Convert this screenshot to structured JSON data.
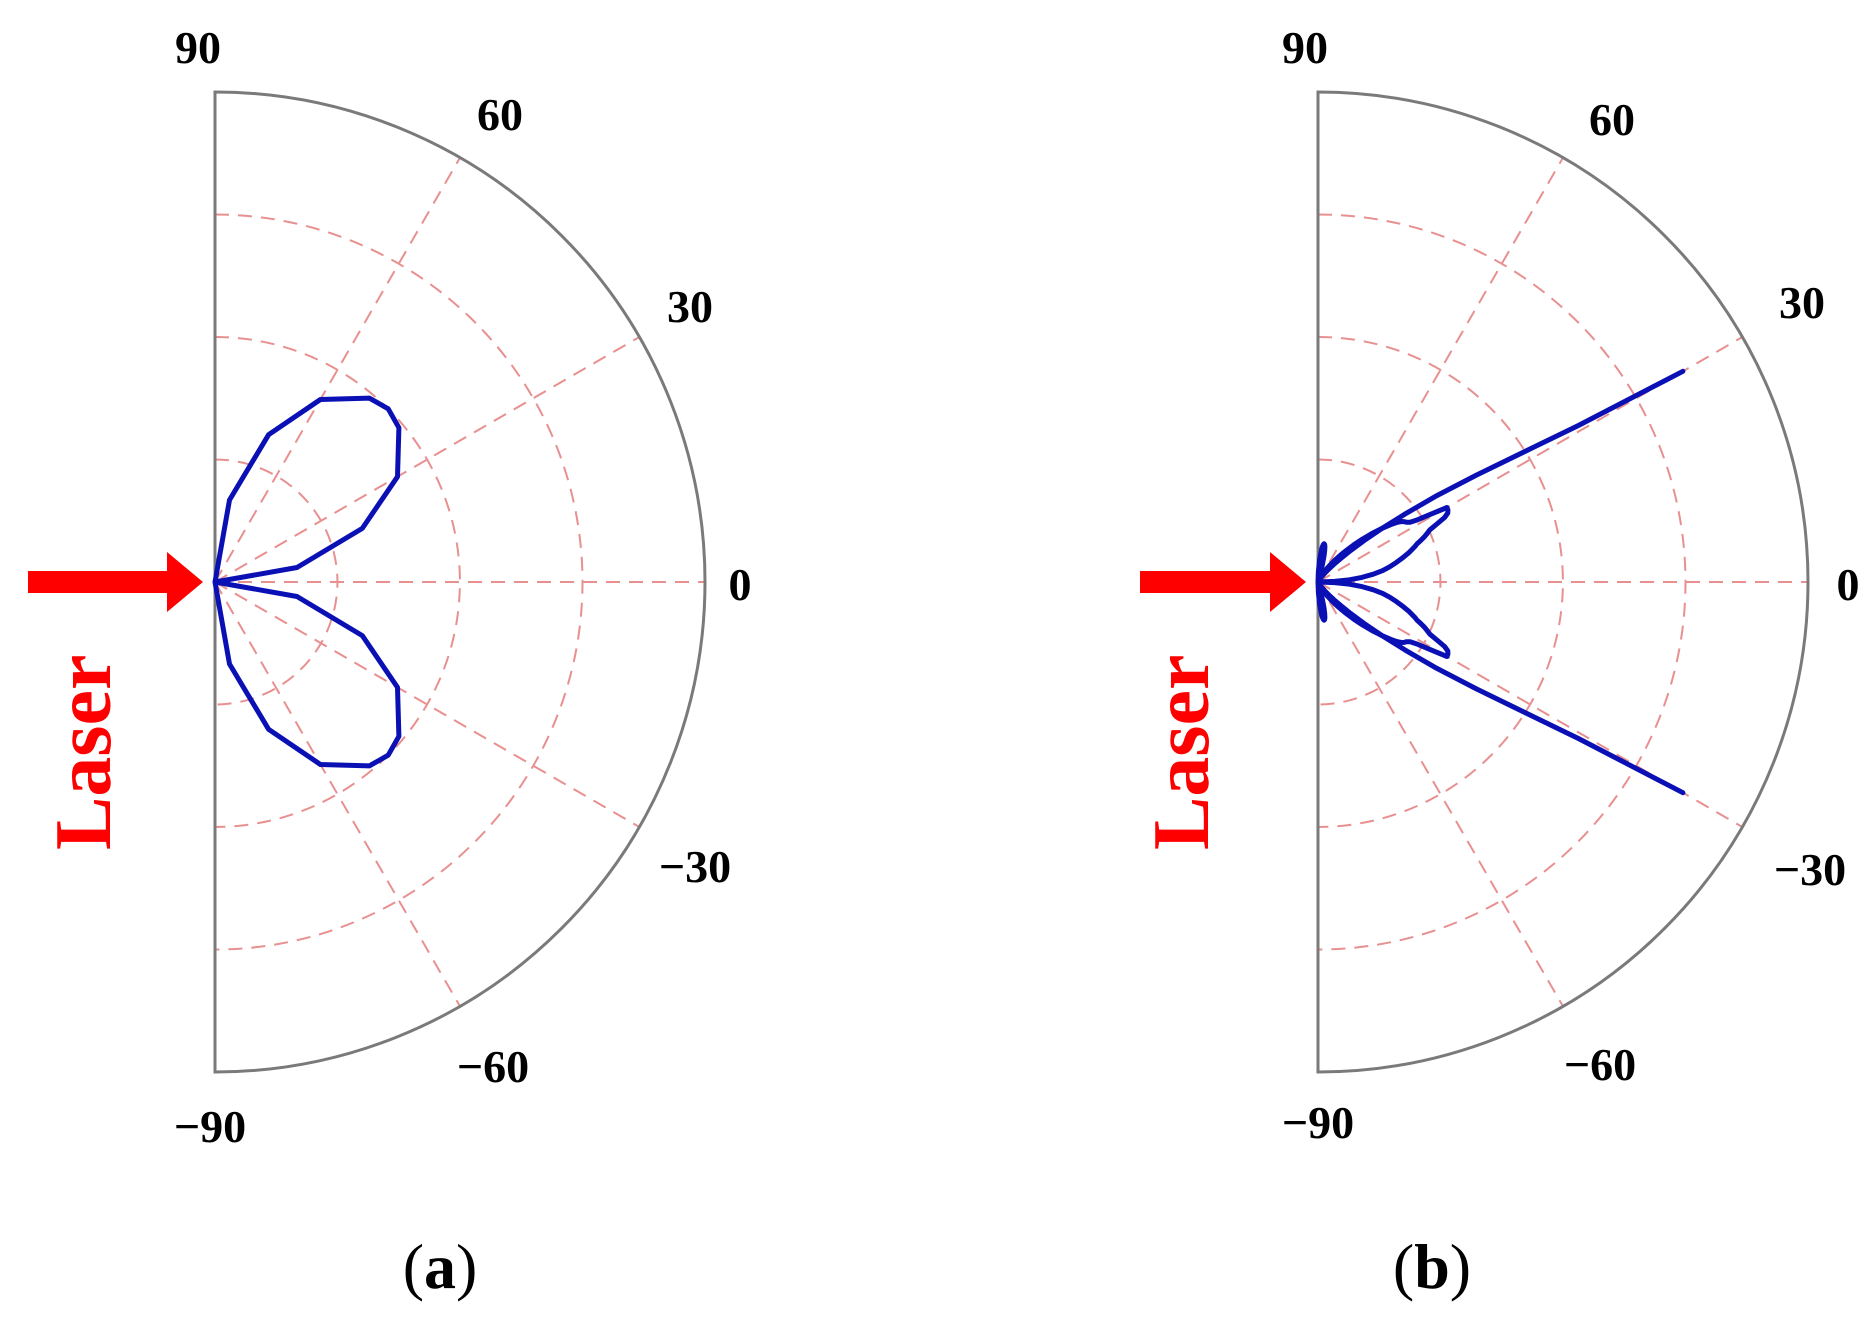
{
  "colors": {
    "curve": "#0a10b4",
    "grid": "#e89090",
    "frame": "#7a7a7a",
    "laser": "#ff0000"
  },
  "laser_label": "Laser",
  "chart_data": [
    {
      "type": "polar",
      "panel_label": {
        "open": "(",
        "letter": "a",
        "close": ")"
      },
      "angle_range_deg": [
        -90,
        90
      ],
      "angle_ticks": [
        "90",
        "60",
        "30",
        "0",
        "−30",
        "−60",
        "−90"
      ],
      "angle_tick_values": [
        90,
        60,
        30,
        0,
        -30,
        -60,
        -90
      ],
      "radial_gridlines": [
        0.25,
        0.5,
        0.75
      ],
      "rmax": 1,
      "grid": true,
      "series": [
        {
          "angle_deg": [
            -90,
            -80,
            -70,
            -60,
            -50,
            -45,
            -40,
            -30,
            -20,
            -10,
            0,
            10,
            20,
            30,
            40,
            45,
            50,
            60,
            70,
            80,
            90
          ],
          "r": [
            0.0,
            0.17,
            0.32,
            0.43,
            0.49,
            0.5,
            0.49,
            0.43,
            0.32,
            0.17,
            0.0,
            0.17,
            0.32,
            0.43,
            0.49,
            0.5,
            0.49,
            0.43,
            0.32,
            0.17,
            0.0
          ]
        }
      ]
    },
    {
      "type": "polar",
      "panel_label": {
        "open": "(",
        "letter": "b",
        "close": ")"
      },
      "angle_range_deg": [
        -90,
        90
      ],
      "angle_ticks": [
        "90",
        "60",
        "30",
        "0",
        "−30",
        "−60",
        "−90"
      ],
      "angle_tick_values": [
        90,
        60,
        30,
        0,
        -30,
        -60,
        -90
      ],
      "radial_gridlines": [
        0.25,
        0.5,
        0.75
      ],
      "rmax": 1,
      "grid": true,
      "series": [
        {
          "angle_deg": [
            -70,
            -65,
            -60,
            -58,
            -56,
            -54,
            -52,
            -50,
            -48,
            -46,
            -44,
            -42,
            -40,
            -38,
            -37,
            -36,
            -35,
            -34,
            -33,
            -32,
            -31,
            -30,
            -29,
            -28,
            -27,
            -26,
            -25,
            -24,
            -23,
            -22,
            -21,
            -20,
            -18,
            -16,
            -14,
            -12,
            -10,
            -8,
            -6,
            -4,
            -2,
            0,
            2,
            4,
            6,
            8,
            10,
            12,
            14,
            16,
            18,
            20,
            21,
            22,
            23,
            24,
            25,
            26,
            27,
            28,
            29,
            30,
            31,
            32,
            33,
            34,
            35,
            36,
            37,
            38,
            40,
            42,
            44,
            46,
            48,
            50,
            52,
            54,
            56,
            58,
            60,
            65,
            70
          ],
          "r": [
            0.0,
            0.012,
            0.022,
            0.028,
            0.036,
            0.046,
            0.058,
            0.072,
            0.088,
            0.106,
            0.126,
            0.148,
            0.17,
            0.192,
            0.202,
            0.21,
            0.215,
            0.218,
            0.224,
            0.24,
            0.27,
            0.304,
            0.303,
            0.3,
            0.29,
            0.27,
            0.252,
            0.244,
            0.236,
            0.226,
            0.216,
            0.21,
            0.196,
            0.18,
            0.165,
            0.15,
            0.134,
            0.114,
            0.09,
            0.064,
            0.034,
            0.0,
            0.034,
            0.064,
            0.09,
            0.114,
            0.134,
            0.15,
            0.165,
            0.18,
            0.196,
            0.21,
            0.216,
            0.226,
            0.236,
            0.244,
            0.252,
            0.27,
            0.29,
            0.3,
            0.303,
            0.304,
            0.27,
            0.24,
            0.224,
            0.218,
            0.215,
            0.21,
            0.202,
            0.192,
            0.17,
            0.148,
            0.126,
            0.106,
            0.088,
            0.072,
            0.058,
            0.046,
            0.036,
            0.028,
            0.022,
            0.012,
            0.0
          ]
        },
        {
          "angle_deg": [
            90,
            88,
            86,
            84,
            83,
            82,
            81,
            80,
            79,
            78,
            77,
            76,
            75,
            74,
            72,
            70,
            68,
            66,
            64,
            62,
            60,
            58,
            56,
            54,
            52,
            50,
            48,
            46,
            44,
            42,
            40,
            38,
            36,
            34,
            32,
            31,
            30
          ],
          "r": [
            0.0,
            0.022,
            0.044,
            0.064,
            0.072,
            0.077,
            0.079,
            0.078,
            0.074,
            0.066,
            0.054,
            0.04,
            0.026,
            0.016,
            0.006,
            0.003,
            0.002,
            0.002,
            0.002,
            0.003,
            0.004,
            0.006,
            0.01,
            0.016,
            0.024,
            0.034,
            0.048,
            0.066,
            0.092,
            0.126,
            0.17,
            0.225,
            0.3,
            0.39,
            0.52,
            0.62,
            0.86
          ]
        },
        {
          "angle_deg": [
            -90,
            -88,
            -86,
            -84,
            -83,
            -82,
            -81,
            -80,
            -79,
            -78,
            -77,
            -76,
            -75,
            -74,
            -72,
            -70,
            -68,
            -66,
            -64,
            -62,
            -60,
            -58,
            -56,
            -54,
            -52,
            -50,
            -48,
            -46,
            -44,
            -42,
            -40,
            -38,
            -36,
            -34,
            -32,
            -31,
            -30
          ],
          "r": [
            0.0,
            0.022,
            0.044,
            0.064,
            0.072,
            0.077,
            0.079,
            0.078,
            0.074,
            0.066,
            0.054,
            0.04,
            0.026,
            0.016,
            0.006,
            0.003,
            0.002,
            0.002,
            0.002,
            0.003,
            0.004,
            0.006,
            0.01,
            0.016,
            0.024,
            0.034,
            0.048,
            0.066,
            0.092,
            0.126,
            0.17,
            0.225,
            0.3,
            0.39,
            0.52,
            0.62,
            0.86
          ]
        }
      ]
    }
  ]
}
